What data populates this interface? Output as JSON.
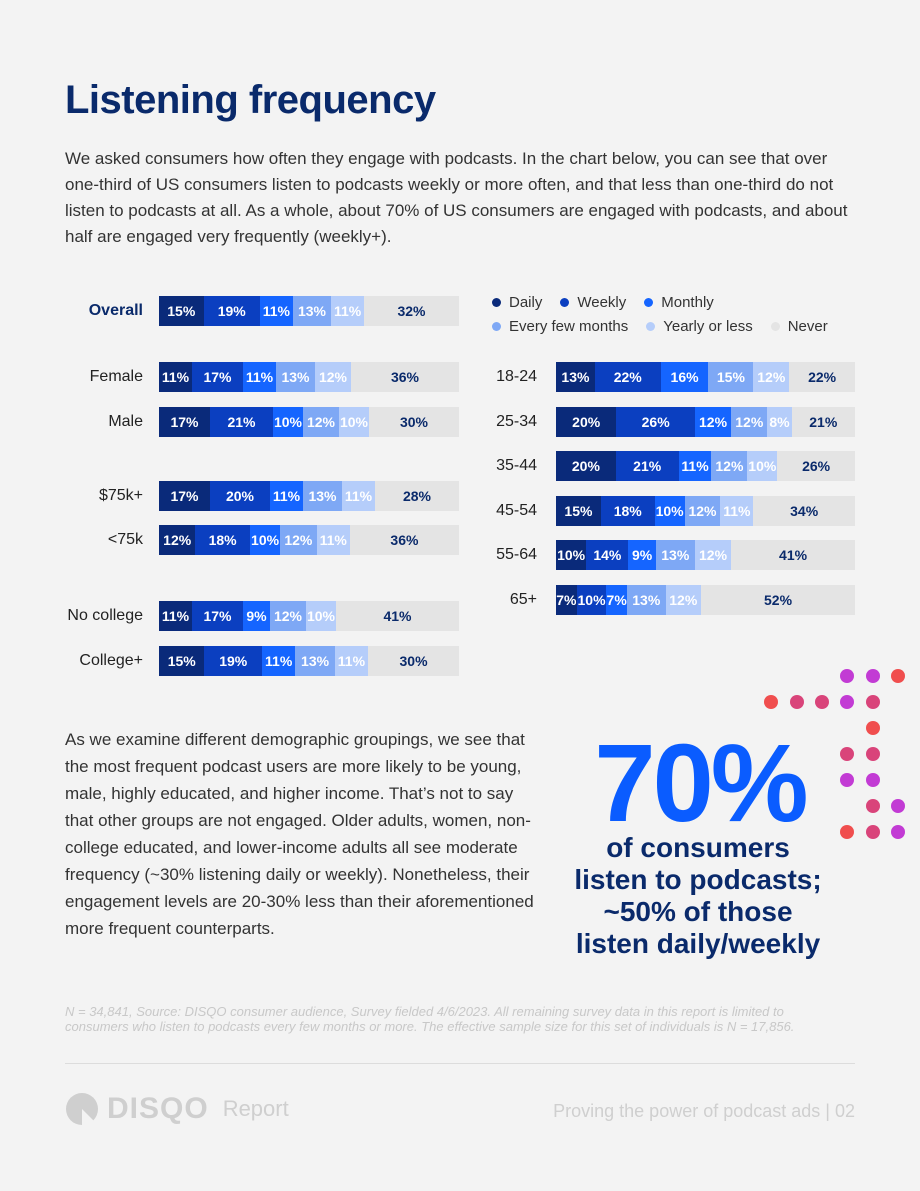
{
  "title": "Listening frequency",
  "intro": "We asked consumers how often they engage with podcasts. In the chart below, you can see that over one-third of US consumers listen to podcasts weekly or more often, and that less than one-third do not listen to podcasts at all. As a whole, about 70% of US consumers are engaged with podcasts, and about half are engaged very frequently (weekly+).",
  "legend": [
    {
      "label": "Daily",
      "color": "#0a2a7a"
    },
    {
      "label": "Weekly",
      "color": "#0b3fc0"
    },
    {
      "label": "Monthly",
      "color": "#1565ff"
    },
    {
      "label": "Every few months",
      "color": "#7ea8f5"
    },
    {
      "label": "Yearly or less",
      "color": "#b5cdfa"
    },
    {
      "label": "Never",
      "color": "#e4e4e4"
    }
  ],
  "chart_data": [
    {
      "type": "bar",
      "orientation": "horizontal-stacked",
      "series_names": [
        "Daily",
        "Weekly",
        "Monthly",
        "Every few months",
        "Yearly or less",
        "Never"
      ],
      "categories": [
        "Overall",
        "Female",
        "Male",
        "$75k+",
        "<75k",
        "No college",
        "College+"
      ],
      "values": [
        [
          15,
          19,
          11,
          13,
          11,
          32
        ],
        [
          11,
          17,
          11,
          13,
          12,
          36
        ],
        [
          17,
          21,
          10,
          12,
          10,
          30
        ],
        [
          17,
          20,
          11,
          13,
          11,
          28
        ],
        [
          12,
          18,
          10,
          12,
          11,
          36
        ],
        [
          11,
          17,
          9,
          12,
          10,
          41
        ],
        [
          15,
          19,
          11,
          13,
          11,
          30
        ]
      ],
      "unit": "%"
    },
    {
      "type": "bar",
      "orientation": "horizontal-stacked",
      "series_names": [
        "Daily",
        "Weekly",
        "Monthly",
        "Every few months",
        "Yearly or less",
        "Never"
      ],
      "categories": [
        "18-24",
        "25-34",
        "35-44",
        "45-54",
        "55-64",
        "65+"
      ],
      "values": [
        [
          13,
          22,
          16,
          15,
          12,
          22
        ],
        [
          20,
          26,
          12,
          12,
          8,
          21
        ],
        [
          20,
          21,
          11,
          12,
          10,
          26
        ],
        [
          15,
          18,
          10,
          12,
          11,
          34
        ],
        [
          10,
          14,
          9,
          13,
          12,
          41
        ],
        [
          7,
          10,
          7,
          13,
          12,
          52
        ]
      ],
      "unit": "%"
    }
  ],
  "body2": "As we examine different demographic groupings, we see that the most frequent podcast users are more likely to be young, male, highly educated, and higher income. That’s not to say that other groups are not engaged. Older adults, women, non-college educated, and  lower-income adults all see moderate frequency (~30% listening daily or weekly). Nonetheless, their engagement levels are 20-30% less than their aforementioned more frequent counterparts.",
  "callout": {
    "stat": "70%",
    "caption_line1": "of consumers",
    "caption_line2": "listen to podcasts;",
    "caption_line3": "~50% of those",
    "caption_line4": "listen daily/weekly"
  },
  "footnote": "N = 34,841, Source: DISQO consumer audience, Survey fielded 4/6/2023. All remaining survey data in this report is limited to consumers who listen to podcasts every few months or more. The effective sample size for this set of individuals is N = 17,856.",
  "footer": {
    "logo": "DISQO",
    "logo_sub": "Report",
    "right": "Proving the power of podcast ads  |  02"
  }
}
